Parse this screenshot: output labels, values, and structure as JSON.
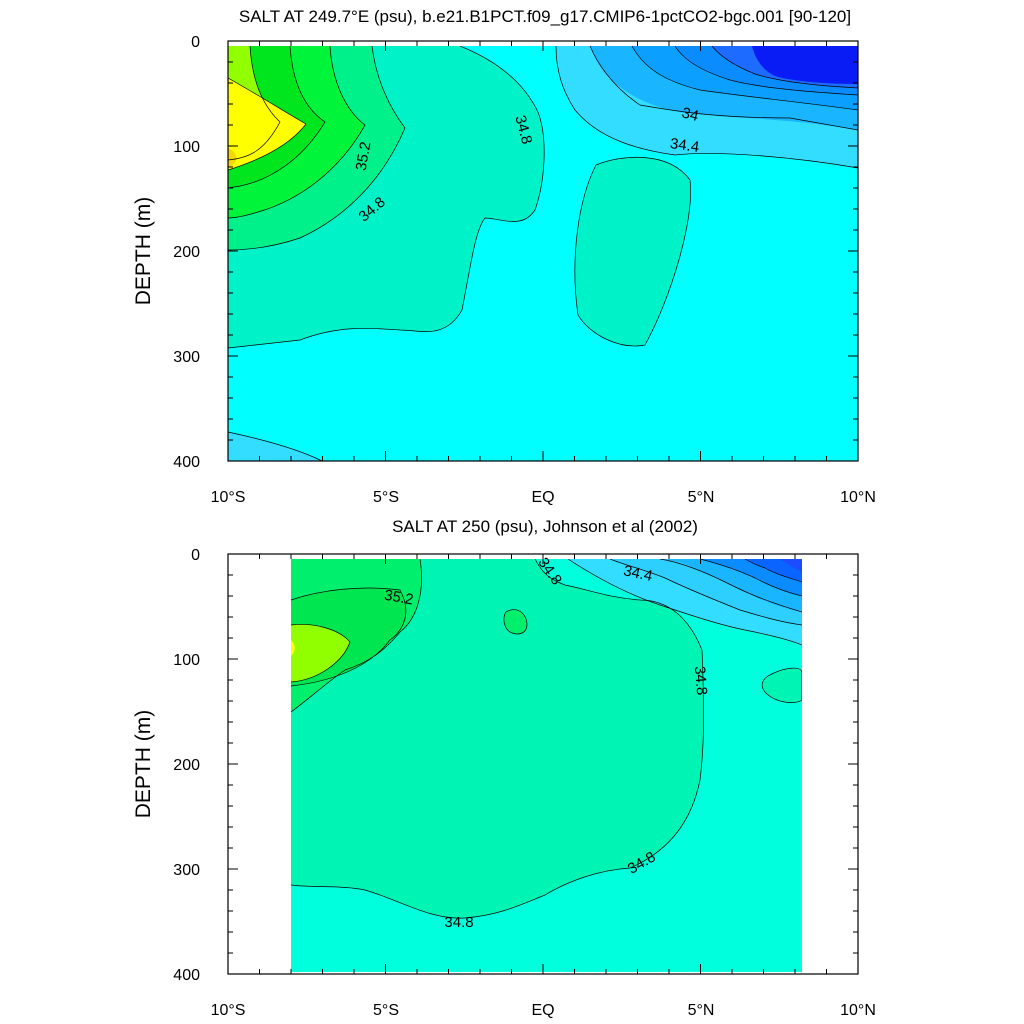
{
  "chart_data": [
    {
      "type": "contour",
      "title": "SALT AT 249.7°E (psu), b.e21.B1PCT.f09_g17.CMIP6-1pctCO2-bgc.001 [90-120]",
      "ylabel": "DEPTH (m)",
      "xlabel": "",
      "x_ticks": [
        "10°S",
        "5°S",
        "EQ",
        "5°N",
        "10°N"
      ],
      "x_range": [
        -10,
        10
      ],
      "y_ticks": [
        "0",
        "100",
        "200",
        "300",
        "400"
      ],
      "ylim": [
        400,
        0
      ],
      "contour_labels": [
        "35.2",
        "34.8",
        "34.8",
        "34.4",
        "34"
      ],
      "colors": {
        "fresh_dark": "#1d4cff",
        "fresh": "#0a8cff",
        "mid_fresh": "#19b6ff",
        "light_fresh": "#33ddff",
        "background": "#00ffff",
        "saltier": "#00f2c8",
        "salt_1": "#00f08a",
        "salt_2": "#00f53a",
        "salt_3": "#91ff00",
        "saltiest": "#ffff00"
      }
    },
    {
      "type": "contour",
      "title": "SALT AT 250 (psu), Johnson et al (2002)",
      "ylabel": "DEPTH (m)",
      "xlabel": "",
      "x_ticks": [
        "10°S",
        "5°S",
        "EQ",
        "5°N",
        "10°N"
      ],
      "x_range": [
        -10,
        10
      ],
      "y_ticks": [
        "0",
        "100",
        "200",
        "300",
        "400"
      ],
      "ylim": [
        400,
        0
      ],
      "contour_labels": [
        "34.8",
        "34.4",
        "35.2",
        "34.8",
        "34.8",
        "34.8"
      ],
      "colors": {
        "fresh_dark": "#1d4cff",
        "fresh": "#0a8cff",
        "mid_fresh": "#19b6ff",
        "light_fresh": "#33ddff",
        "background": "#00ffdc",
        "saltier": "#00f5b4",
        "salt_1": "#00f06e",
        "salt_2": "#91ff00",
        "saltiest": "#ffff00"
      }
    }
  ]
}
